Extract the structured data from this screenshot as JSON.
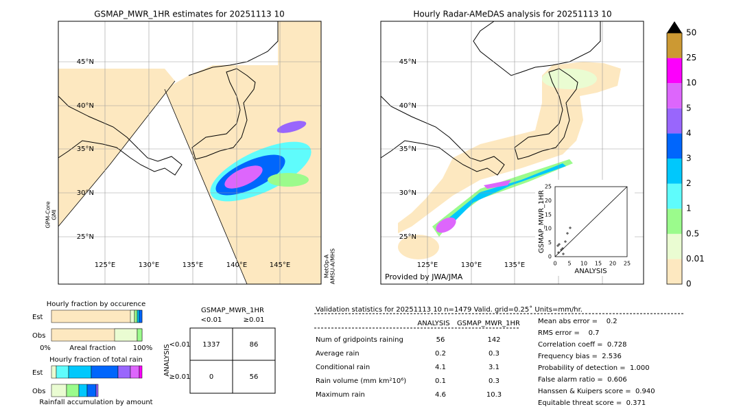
{
  "left_map": {
    "title": "GSMAP_MWR_1HR estimates for 20251113 10",
    "lat_labels": [
      "45°N",
      "40°N",
      "35°N",
      "30°N",
      "25°N"
    ],
    "lon_labels": [
      "125°E",
      "130°E",
      "135°E",
      "140°E",
      "145°E"
    ],
    "left_note": [
      "GPM-Core",
      "GMI"
    ],
    "right_note": [
      "MetOp-A",
      "AMSU-A/MHS"
    ]
  },
  "right_map": {
    "title": "Hourly Radar-AMeDAS analysis for 20251113 10",
    "lat_labels": [
      "45°N",
      "40°N",
      "35°N",
      "30°N",
      "25°N"
    ],
    "lon_labels": [
      "125°E",
      "130°E",
      "135°E"
    ],
    "credit": "Provided by JWA/JMA"
  },
  "scatter": {
    "xlabel": "ANALYSIS",
    "ylabel": "GSMAP_MWR_1HR",
    "ticks": [
      "0",
      "5",
      "10",
      "15",
      "20",
      "25"
    ]
  },
  "colorbar": {
    "labels": [
      "0",
      "0.01",
      "0.5",
      "1",
      "2",
      "3",
      "4",
      "5",
      "10",
      "25",
      "50"
    ],
    "colors": [
      "#fde8c0",
      "#eafcd2",
      "#9bfb8c",
      "#5ffcfc",
      "#00c8fc",
      "#0066fc",
      "#9966fc",
      "#dd66fc",
      "#fc00fc",
      "#cc9933"
    ]
  },
  "fraction": {
    "occurrence_title": "Hourly fraction by occurence",
    "est": "Est",
    "obs": "Obs",
    "axis_left": "0%",
    "axis_label": "Areal fraction",
    "axis_right": "100%",
    "total_title": "Hourly fraction of total rain",
    "est2": "Est",
    "obs2": "Obs",
    "caption": "Rainfall accumulation by amount"
  },
  "contingency": {
    "title": "GSMAP_MWR_1HR",
    "col_labels": [
      "<0.01",
      "≥0.01"
    ],
    "row_axis": "ANALYSIS",
    "row_labels": [
      "<0.01",
      "≥0.01"
    ],
    "cells": [
      [
        "1337",
        "86"
      ],
      [
        "0",
        "56"
      ]
    ]
  },
  "validation": {
    "header": "Validation statistics for 20251113 10  n=1479 Valid. grid=0.25˚ Units=mm/hr.",
    "columns": [
      "ANALYSIS",
      "GSMAP_MWR_1HR"
    ],
    "rows": [
      [
        "Num of gridpoints raining",
        "56",
        "142"
      ],
      [
        "Average rain",
        "0.2",
        "0.3"
      ],
      [
        "Conditional rain",
        "4.1",
        "3.1"
      ],
      [
        "Rain volume (mm km²10⁶)",
        "0.1",
        "0.3"
      ],
      [
        "Maximum rain",
        "4.6",
        "10.3"
      ]
    ],
    "scores": [
      "Mean abs error =    0.2",
      "RMS error =    0.7",
      "Correlation coeff =  0.728",
      "Frequency bias =  2.536",
      "Probability of detection =  1.000",
      "False alarm ratio =  0.606",
      "Hanssen & Kuipers score =  0.940",
      "Equitable threat score =  0.371"
    ]
  }
}
